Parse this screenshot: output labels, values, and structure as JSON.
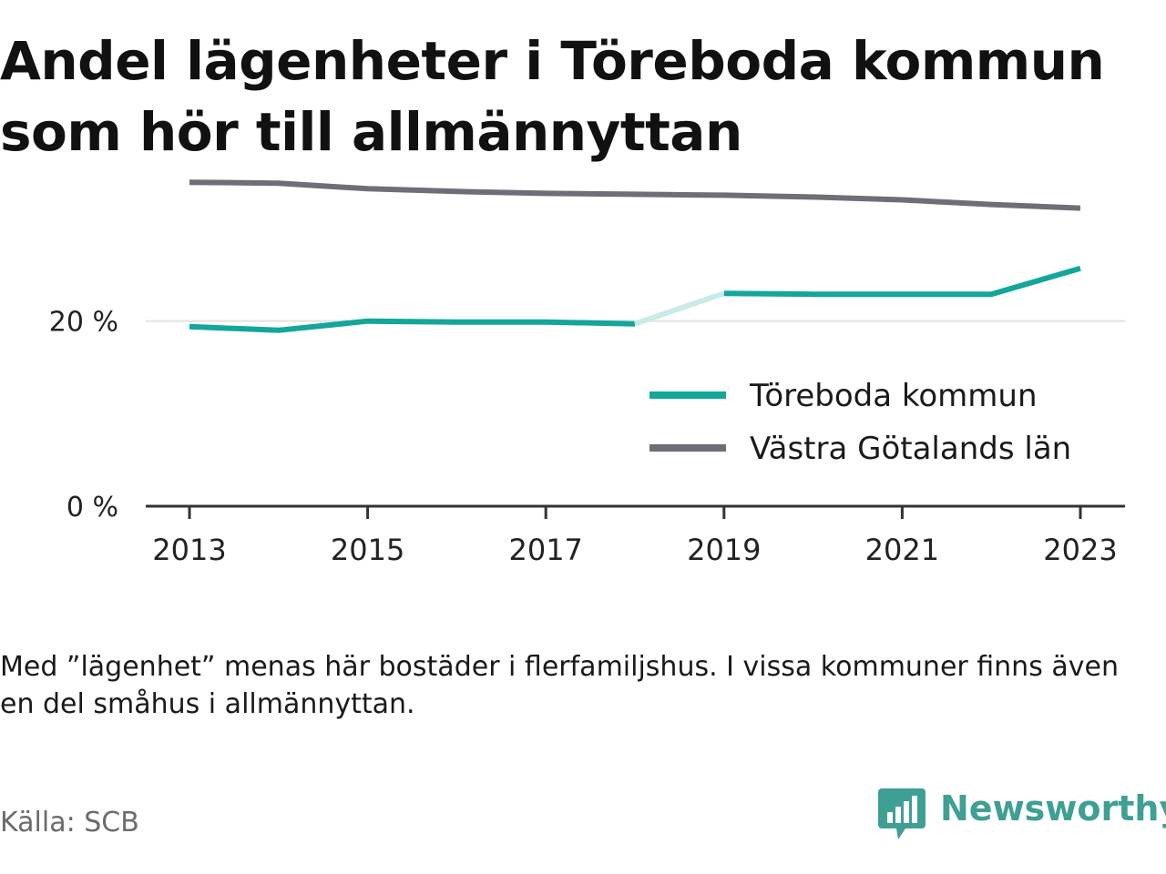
{
  "title": "Andel lägenheter i Töreboda kommun som hör till allmännyttan",
  "note": "Med ”lägenhet” menas här bostäder i flerfamiljshus. I vissa kommuner finns även en del småhus i allmännyttan.",
  "source": "Källa: SCB",
  "brand": {
    "name": "Newsworthy",
    "icon": "newsworthy-bar-chart-logo-icon",
    "color": "#3f9f95"
  },
  "chart_data": {
    "type": "line",
    "x": [
      2013,
      2014,
      2015,
      2016,
      2017,
      2018,
      2019,
      2020,
      2021,
      2022,
      2023
    ],
    "x_tick_labels": [
      "2013",
      "2015",
      "2017",
      "2019",
      "2021",
      "2023"
    ],
    "y_tick_labels": [
      "0 %",
      "20 %"
    ],
    "y_ticks": [
      0,
      20
    ],
    "ylim": [
      0,
      36
    ],
    "xlim": [
      2012.5,
      2023.5
    ],
    "grid": "horizontal at 20 %",
    "legend_position": "right, below the lines",
    "series": [
      {
        "name": "Töreboda kommun",
        "color": "#13a69b",
        "values": [
          19.4,
          19.0,
          20.0,
          19.9,
          19.9,
          19.7,
          23.0,
          22.9,
          22.9,
          22.9,
          25.7
        ],
        "faded_segment_between": [
          2018,
          2019
        ]
      },
      {
        "name": "Västra Götalands län",
        "color": "#6f6e78",
        "values": [
          35.0,
          34.9,
          34.3,
          34.0,
          33.8,
          33.7,
          33.6,
          33.4,
          33.1,
          32.6,
          32.2
        ]
      }
    ]
  }
}
